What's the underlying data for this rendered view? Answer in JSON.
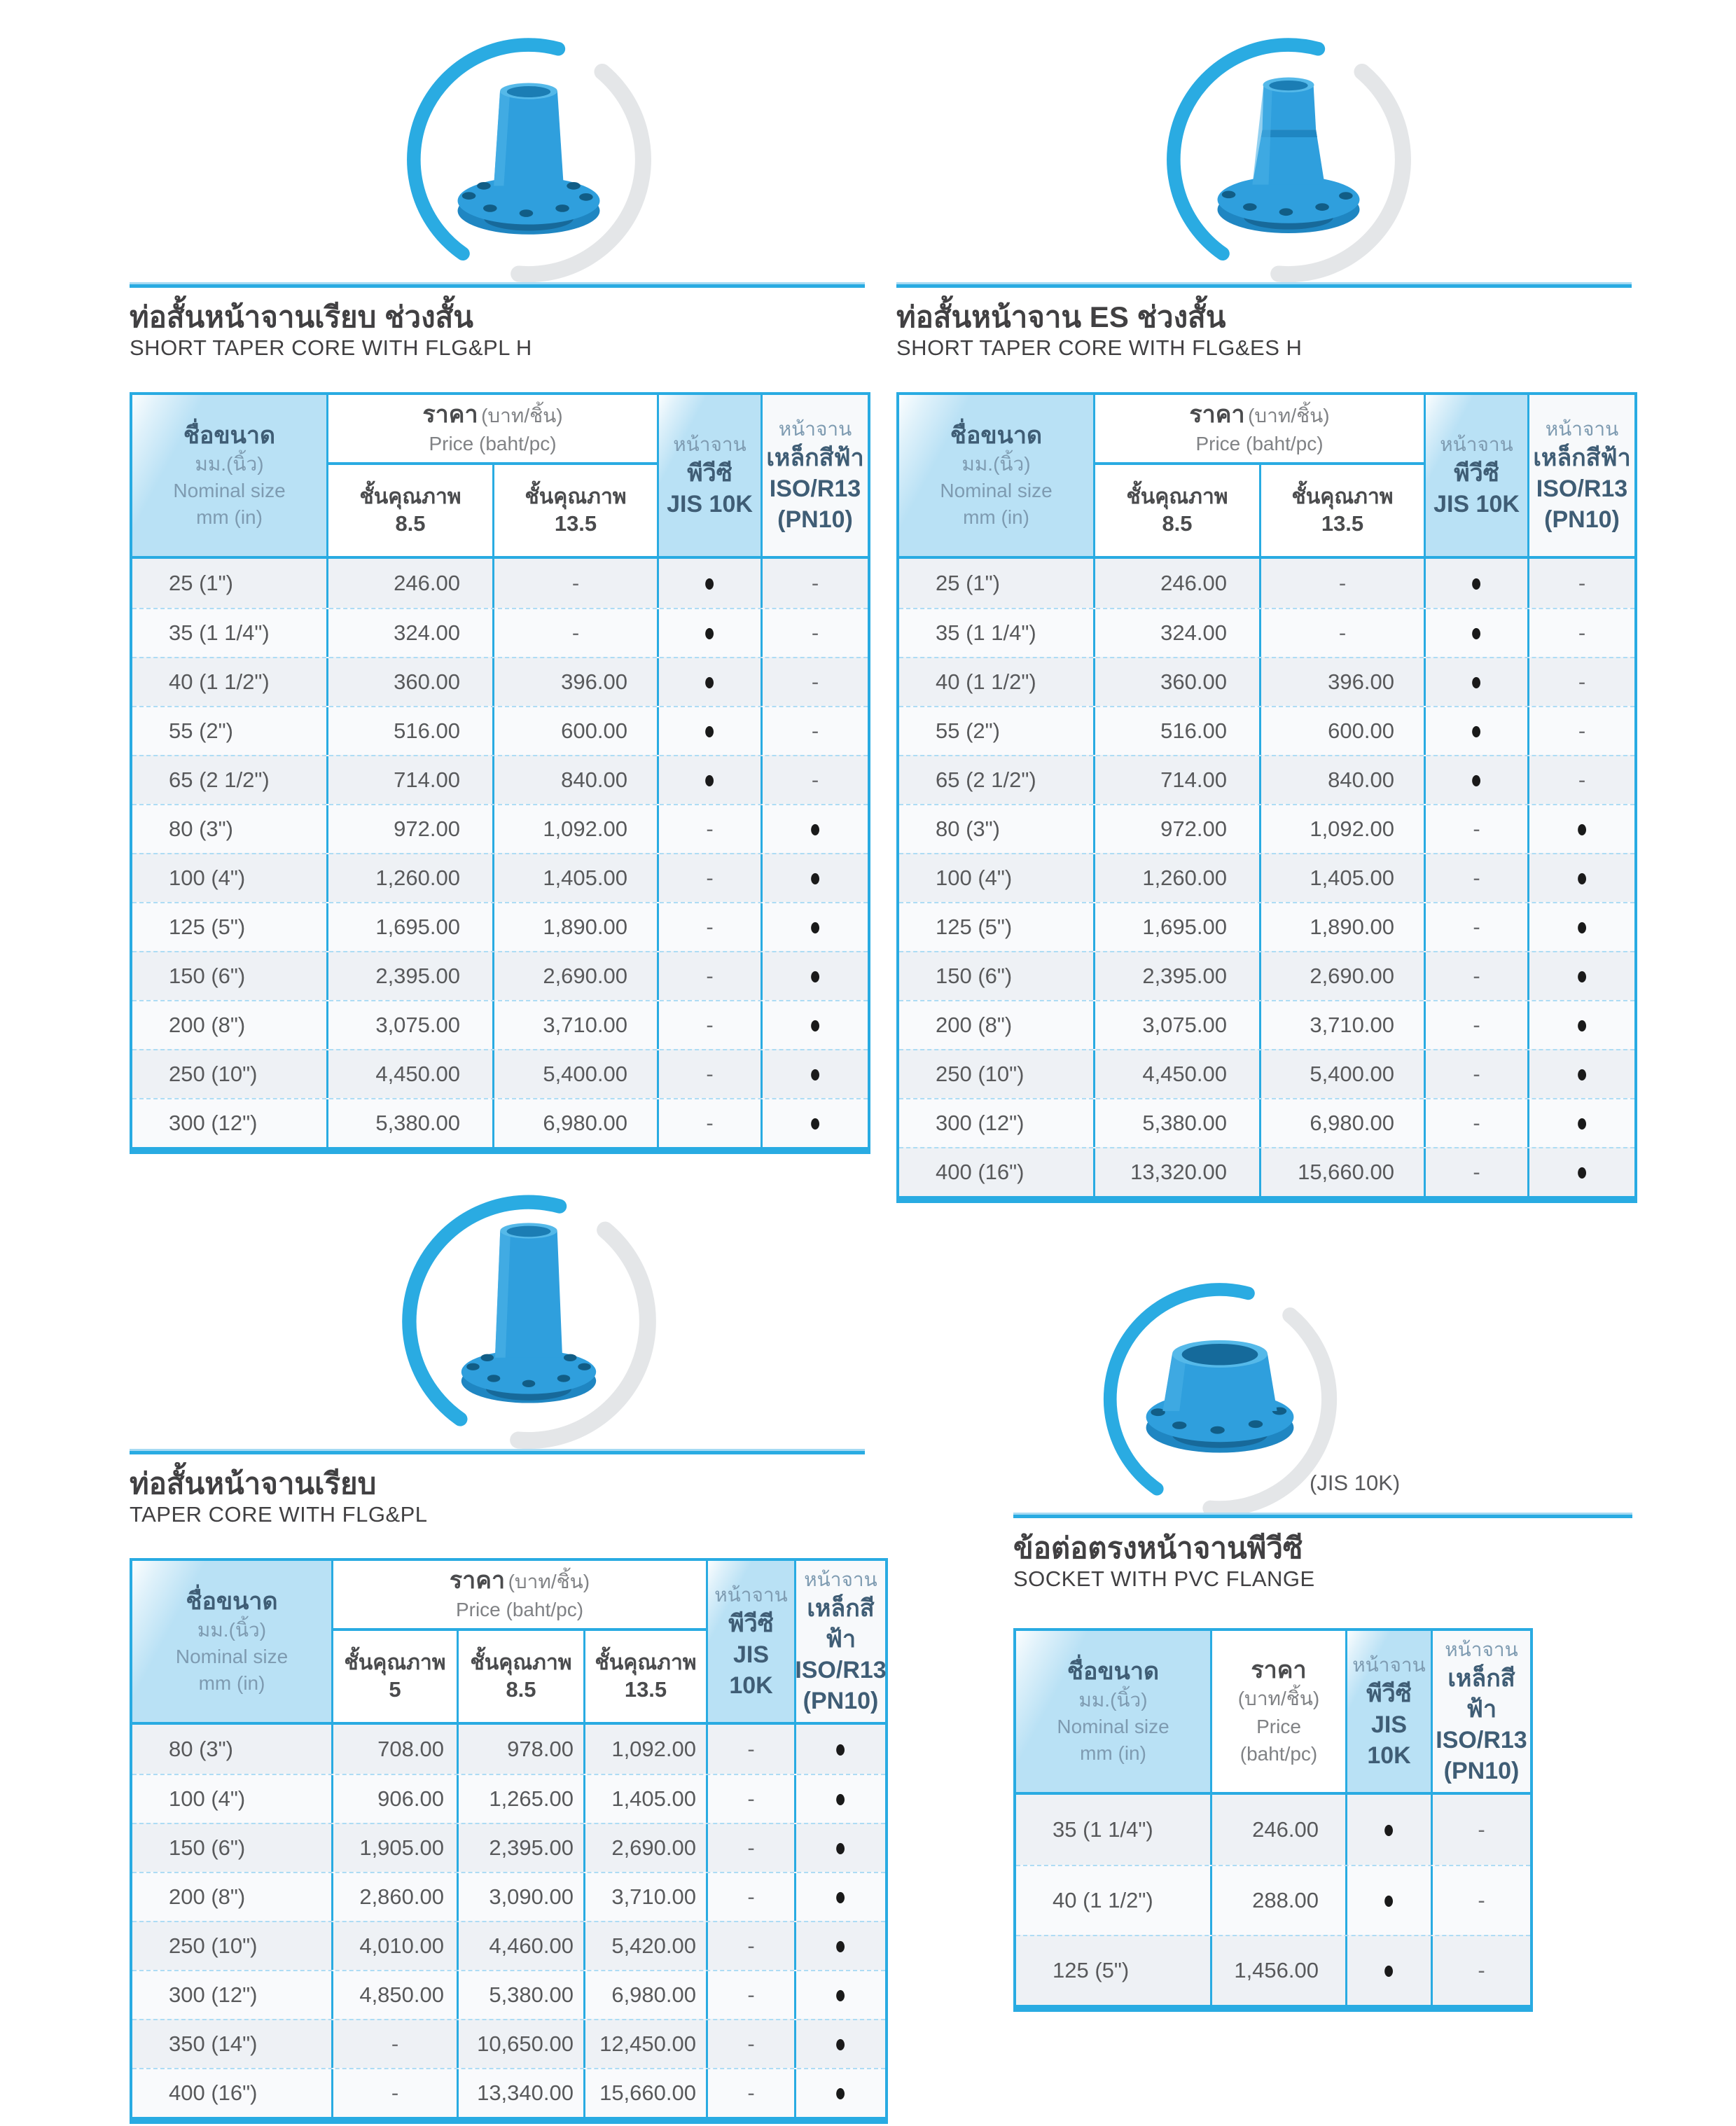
{
  "accent": "#29abe2",
  "header_fill": "#b9e1f5",
  "sections": [
    {
      "title_th": "ท่อสั้นหน้าจานเรียบ ช่วงสั้น",
      "title_en": "SHORT TAPER CORE WITH FLG&PL H",
      "photo": "short-taper-core-flange-fitting-photo",
      "header": {
        "size": {
          "l1": "ชื่อขนาด",
          "l2": "มม.(นิ้ว)",
          "l3": "Nominal size",
          "l4": "mm (in)"
        },
        "price": {
          "th": "ราคา",
          "unit": "(บาท/ชิ้น)",
          "en": "Price (baht/pc)"
        },
        "classes": [
          {
            "label": "ชั้นคุณภาพ",
            "value": "8.5"
          },
          {
            "label": "ชั้นคุณภาพ",
            "value": "13.5"
          }
        ],
        "jis": {
          "l1": "หน้าจาน",
          "l2": "พีวีซี",
          "l3": "JIS 10K"
        },
        "iso": {
          "l1": "หน้าจาน",
          "l2": "เหล็กสีฟ้า",
          "l3": "ISO/R13",
          "l4": "(PN10)"
        }
      },
      "rows": [
        [
          "25 (1\")",
          "246.00",
          "-",
          "●",
          "-"
        ],
        [
          "35 (1 1/4\")",
          "324.00",
          "-",
          "●",
          "-"
        ],
        [
          "40 (1 1/2\")",
          "360.00",
          "396.00",
          "●",
          "-"
        ],
        [
          "55 (2\")",
          "516.00",
          "600.00",
          "●",
          "-"
        ],
        [
          "65 (2 1/2\")",
          "714.00",
          "840.00",
          "●",
          "-"
        ],
        [
          "80 (3\")",
          "972.00",
          "1,092.00",
          "-",
          "●"
        ],
        [
          "100 (4\")",
          "1,260.00",
          "1,405.00",
          "-",
          "●"
        ],
        [
          "125 (5\")",
          "1,695.00",
          "1,890.00",
          "-",
          "●"
        ],
        [
          "150 (6\")",
          "2,395.00",
          "2,690.00",
          "-",
          "●"
        ],
        [
          "200 (8\")",
          "3,075.00",
          "3,710.00",
          "-",
          "●"
        ],
        [
          "250 (10\")",
          "4,450.00",
          "5,400.00",
          "-",
          "●"
        ],
        [
          "300 (12\")",
          "5,380.00",
          "6,980.00",
          "-",
          "●"
        ]
      ]
    },
    {
      "title_th": "ท่อสั้นหน้าจาน ES ช่วงสั้น",
      "title_en": "SHORT TAPER CORE WITH FLG&ES H",
      "photo": "short-taper-core-es-flange-fitting-photo",
      "header": {
        "size": {
          "l1": "ชื่อขนาด",
          "l2": "มม.(นิ้ว)",
          "l3": "Nominal size",
          "l4": "mm (in)"
        },
        "price": {
          "th": "ราคา",
          "unit": "(บาท/ชิ้น)",
          "en": "Price (baht/pc)"
        },
        "classes": [
          {
            "label": "ชั้นคุณภาพ",
            "value": "8.5"
          },
          {
            "label": "ชั้นคุณภาพ",
            "value": "13.5"
          }
        ],
        "jis": {
          "l1": "หน้าจาน",
          "l2": "พีวีซี",
          "l3": "JIS 10K"
        },
        "iso": {
          "l1": "หน้าจาน",
          "l2": "เหล็กสีฟ้า",
          "l3": "ISO/R13",
          "l4": "(PN10)"
        }
      },
      "rows": [
        [
          "25 (1\")",
          "246.00",
          "-",
          "●",
          "-"
        ],
        [
          "35 (1 1/4\")",
          "324.00",
          "-",
          "●",
          "-"
        ],
        [
          "40 (1 1/2\")",
          "360.00",
          "396.00",
          "●",
          "-"
        ],
        [
          "55 (2\")",
          "516.00",
          "600.00",
          "●",
          "-"
        ],
        [
          "65 (2 1/2\")",
          "714.00",
          "840.00",
          "●",
          "-"
        ],
        [
          "80 (3\")",
          "972.00",
          "1,092.00",
          "-",
          "●"
        ],
        [
          "100 (4\")",
          "1,260.00",
          "1,405.00",
          "-",
          "●"
        ],
        [
          "125 (5\")",
          "1,695.00",
          "1,890.00",
          "-",
          "●"
        ],
        [
          "150 (6\")",
          "2,395.00",
          "2,690.00",
          "-",
          "●"
        ],
        [
          "200 (8\")",
          "3,075.00",
          "3,710.00",
          "-",
          "●"
        ],
        [
          "250 (10\")",
          "4,450.00",
          "5,400.00",
          "-",
          "●"
        ],
        [
          "300 (12\")",
          "5,380.00",
          "6,980.00",
          "-",
          "●"
        ],
        [
          "400 (16\")",
          "13,320.00",
          "15,660.00",
          "-",
          "●"
        ]
      ]
    },
    {
      "title_th": "ท่อสั้นหน้าจานเรียบ",
      "title_en": "TAPER CORE WITH FLG&PL",
      "photo": "taper-core-flange-fitting-photo",
      "header": {
        "size": {
          "l1": "ชื่อขนาด",
          "l2": "มม.(นิ้ว)",
          "l3": "Nominal size",
          "l4": "mm (in)"
        },
        "price": {
          "th": "ราคา",
          "unit": "(บาท/ชิ้น)",
          "en": "Price (baht/pc)"
        },
        "classes": [
          {
            "label": "ชั้นคุณภาพ",
            "value": "5"
          },
          {
            "label": "ชั้นคุณภาพ",
            "value": "8.5"
          },
          {
            "label": "ชั้นคุณภาพ",
            "value": "13.5"
          }
        ],
        "jis": {
          "l1": "หน้าจาน",
          "l2": "พีวีซี",
          "l3": "JIS 10K"
        },
        "iso": {
          "l1": "หน้าจาน",
          "l2": "เหล็กสีฟ้า",
          "l3": "ISO/R13",
          "l4": "(PN10)"
        }
      },
      "rows": [
        [
          "80 (3\")",
          "708.00",
          "978.00",
          "1,092.00",
          "-",
          "●"
        ],
        [
          "100 (4\")",
          "906.00",
          "1,265.00",
          "1,405.00",
          "-",
          "●"
        ],
        [
          "150 (6\")",
          "1,905.00",
          "2,395.00",
          "2,690.00",
          "-",
          "●"
        ],
        [
          "200 (8\")",
          "2,860.00",
          "3,090.00",
          "3,710.00",
          "-",
          "●"
        ],
        [
          "250 (10\")",
          "4,010.00",
          "4,460.00",
          "5,420.00",
          "-",
          "●"
        ],
        [
          "300 (12\")",
          "4,850.00",
          "5,380.00",
          "6,980.00",
          "-",
          "●"
        ],
        [
          "350 (14\")",
          "-",
          "10,650.00",
          "12,450.00",
          "-",
          "●"
        ],
        [
          "400 (16\")",
          "-",
          "13,340.00",
          "15,660.00",
          "-",
          "●"
        ]
      ]
    },
    {
      "title_th": "ข้อต่อตรงหน้าจานพีวีซี",
      "title_en": "SOCKET WITH PVC FLANGE",
      "photo": "socket-with-pvc-flange-photo",
      "caption": "(JIS 10K)",
      "header": {
        "size": {
          "l1": "ชื่อขนาด",
          "l2": "มม.(นิ้ว)",
          "l3": "Nominal size",
          "l4": "mm (in)"
        },
        "price": {
          "th": "ราคา",
          "unit": "(บาท/ชิ้น)",
          "en1": "Price",
          "en2": "(baht/pc)"
        },
        "jis": {
          "l1": "หน้าจาน",
          "l2": "พีวีซี",
          "l3": "JIS 10K"
        },
        "iso": {
          "l1": "หน้าจาน",
          "l2": "เหล็กสีฟ้า",
          "l3": "ISO/R13",
          "l4": "(PN10)"
        }
      },
      "rows": [
        [
          "35 (1 1/4\")",
          "246.00",
          "●",
          "-"
        ],
        [
          "40 (1 1/2\")",
          "288.00",
          "●",
          "-"
        ],
        [
          "125 (5\")",
          "1,456.00",
          "●",
          "-"
        ]
      ]
    }
  ]
}
